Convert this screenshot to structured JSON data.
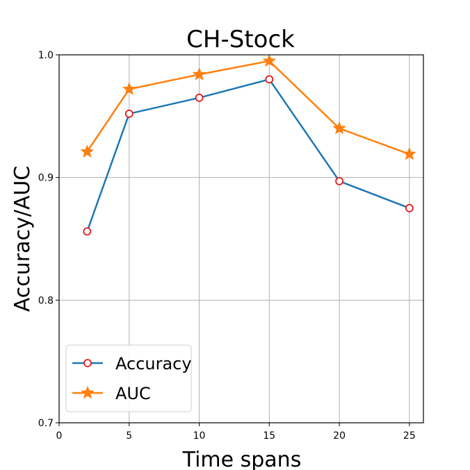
{
  "chart_data": {
    "type": "line",
    "title": "CH-Stock",
    "xlabel": "Time spans",
    "ylabel": "Accuracy/AUC",
    "x": [
      2,
      5,
      10,
      15,
      20,
      25
    ],
    "xlim": [
      0,
      26
    ],
    "ylim": [
      0.7,
      1.0
    ],
    "xticks": [
      "0",
      "5",
      "10",
      "15",
      "20",
      "25"
    ],
    "yticks": [
      "0.7",
      "0.8",
      "0.9",
      "1.0"
    ],
    "grid": true,
    "legend_position": "bottom-left",
    "series": [
      {
        "name": "Accuracy",
        "color": "#1f77b4",
        "marker": "circle-open-red",
        "values": [
          0.856,
          0.952,
          0.965,
          0.98,
          0.897,
          0.875
        ]
      },
      {
        "name": "AUC",
        "color": "#ff7f0e",
        "marker": "star",
        "values": [
          0.921,
          0.972,
          0.984,
          0.995,
          0.94,
          0.919
        ]
      }
    ]
  }
}
